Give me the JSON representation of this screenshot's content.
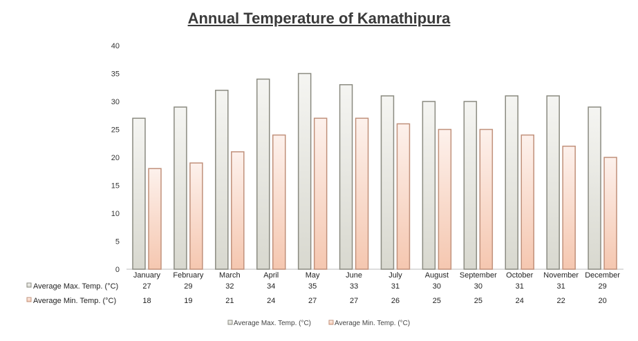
{
  "chart_data": {
    "type": "bar",
    "title": "Annual Temperature of Kamathipura",
    "categories": [
      "January",
      "February",
      "March",
      "April",
      "May",
      "June",
      "July",
      "August",
      "September",
      "October",
      "November",
      "December"
    ],
    "series": [
      {
        "name": "Average Max. Temp. (°C)",
        "values": [
          27,
          29,
          32,
          34,
          35,
          33,
          31,
          30,
          30,
          31,
          31,
          29
        ],
        "fill_top": "#f5f5f2",
        "fill_bottom": "#d8d8cf",
        "stroke": "#8a8a80"
      },
      {
        "name": "Average Min. Temp. (°C)",
        "values": [
          18,
          19,
          21,
          24,
          27,
          27,
          26,
          25,
          25,
          24,
          22,
          20
        ],
        "fill_top": "#fdf1ec",
        "fill_bottom": "#f5c7b0",
        "stroke": "#c0907a"
      }
    ],
    "ylim": [
      0,
      40
    ],
    "yticks": [
      0,
      5,
      10,
      15,
      20,
      25,
      30,
      35,
      40
    ],
    "xlabel": "",
    "ylabel": "",
    "legend_position": "bottom",
    "data_table": true
  }
}
